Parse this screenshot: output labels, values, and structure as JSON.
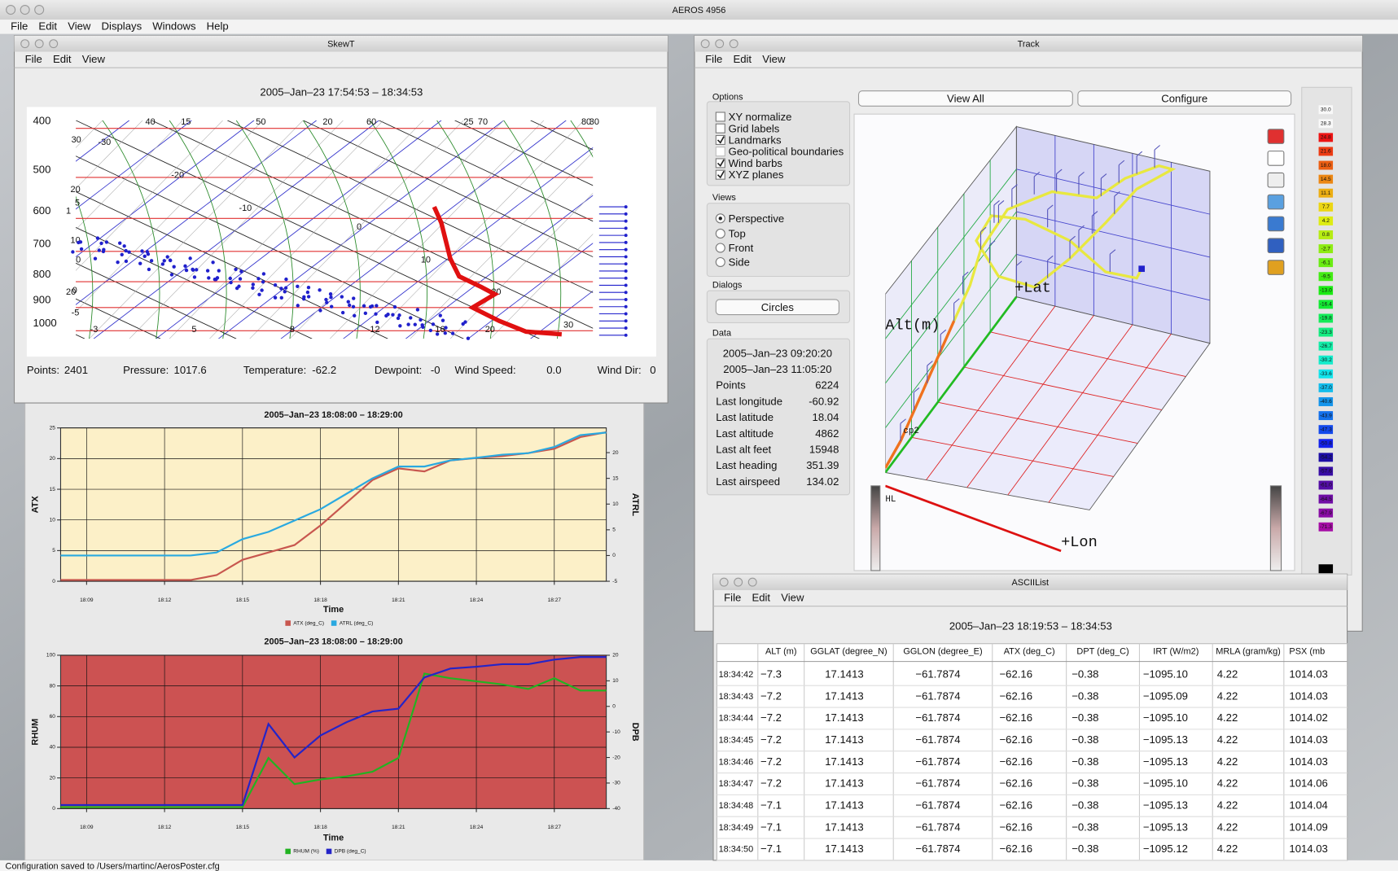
{
  "app": {
    "title": "AEROS 4956",
    "menu": [
      "File",
      "Edit",
      "View",
      "Displays",
      "Windows",
      "Help"
    ]
  },
  "skewt": {
    "title": "SkewT",
    "menu": [
      "File",
      "Edit",
      "View"
    ],
    "header": "2005–Jan–23 17:54:53 – 18:34:53",
    "pressure_labels": [
      "400",
      "500",
      "600",
      "700",
      "800",
      "900",
      "1000"
    ],
    "plot_labels": [
      "40",
      "15",
      "50",
      "20",
      "60",
      "25",
      "70",
      "80",
      "30",
      "30",
      "-30",
      "-20",
      "20",
      "5",
      "1",
      "-10",
      "0",
      "10",
      "0",
      "10",
      "20",
      "0",
      "-5",
      "20",
      "-3",
      "5",
      "8",
      "12",
      "16",
      "20",
      "30"
    ],
    "readouts": [
      {
        "label": "Points:",
        "value": "2401"
      },
      {
        "label": "Pressure:",
        "value": "1017.6"
      },
      {
        "label": "Temperature:",
        "value": "-62.2"
      },
      {
        "label": "Dewpoint:",
        "value": "-0"
      },
      {
        "label": "Wind Speed:",
        "value": "0.0"
      },
      {
        "label": "Wind Dir:",
        "value": "0"
      }
    ]
  },
  "track": {
    "title": "Track",
    "menu": [
      "File",
      "Edit",
      "View"
    ],
    "buttons": [
      "View All",
      "Configure"
    ],
    "options_title": "Options",
    "options": [
      {
        "label": "XY normalize",
        "checked": false,
        "enabled": true
      },
      {
        "label": "Grid labels",
        "checked": false,
        "enabled": true
      },
      {
        "label": "Landmarks",
        "checked": true,
        "enabled": true
      },
      {
        "label": "Geo-political boundaries",
        "checked": false,
        "enabled": false
      },
      {
        "label": "Wind barbs",
        "checked": true,
        "enabled": true
      },
      {
        "label": "XYZ planes",
        "checked": true,
        "enabled": true
      }
    ],
    "views_title": "Views",
    "views": [
      {
        "label": "Perspective",
        "selected": true
      },
      {
        "label": "Top",
        "selected": false
      },
      {
        "label": "Front",
        "selected": false
      },
      {
        "label": "Side",
        "selected": false
      }
    ],
    "dialogs_title": "Dialogs",
    "dialog_button": "Circles",
    "data_title": "Data",
    "data_times": [
      "2005–Jan–23 09:20:20",
      "2005–Jan–23 11:05:20"
    ],
    "data_rows": [
      [
        "Points",
        "6224"
      ],
      [
        "Last longitude",
        "-60.92"
      ],
      [
        "Last latitude",
        "18.04"
      ],
      [
        "Last altitude",
        "4862"
      ],
      [
        "Last alt feet",
        "15948"
      ],
      [
        "Last heading",
        "351.39"
      ],
      [
        "Last airspeed",
        "134.02"
      ]
    ],
    "view_labels": [
      "+Lat",
      "Alt(m)",
      "+Lon",
      "cp2",
      "HL"
    ],
    "color_scale": [
      "30.0",
      "28.3",
      "24.8",
      "21.6",
      "18.0",
      "14.5",
      "11.1",
      "7.7",
      "4.2",
      "0.8",
      "-2.7",
      "-6.1",
      "-9.5",
      "-13.0",
      "-16.4",
      "-19.8",
      "-23.3",
      "-26.7",
      "-30.2",
      "-33.6",
      "-37.0",
      "-40.6",
      "-43.9",
      "-47.3",
      "-50.8",
      "-54.2",
      "-57.6",
      "-61.0",
      "-64.5",
      "-67.9",
      "-71.3"
    ]
  },
  "ascii": {
    "title": "ASCIIList",
    "menu": [
      "File",
      "Edit",
      "View"
    ],
    "header": "2005–Jan–23 18:19:53 – 18:34:53",
    "columns": [
      "ALT (m)",
      "GGLAT (degree_N)",
      "GGLON (degree_E)",
      "ATX (deg_C)",
      "DPT (deg_C)",
      "IRT (W/m2)",
      "MRLA (gram/kg)",
      "PSX (mb"
    ],
    "rows": [
      [
        "18:34:42",
        "−7.3",
        "17.1413",
        "−61.7874",
        "−62.16",
        "−0.38",
        "−1095.10",
        "4.22",
        "1014.03"
      ],
      [
        "18:34:43",
        "−7.2",
        "17.1413",
        "−61.7874",
        "−62.16",
        "−0.38",
        "−1095.09",
        "4.22",
        "1014.03"
      ],
      [
        "18:34:44",
        "−7.2",
        "17.1413",
        "−61.7874",
        "−62.16",
        "−0.38",
        "−1095.10",
        "4.22",
        "1014.02"
      ],
      [
        "18:34:45",
        "−7.2",
        "17.1413",
        "−61.7874",
        "−62.16",
        "−0.38",
        "−1095.13",
        "4.22",
        "1014.03"
      ],
      [
        "18:34:46",
        "−7.2",
        "17.1413",
        "−61.7874",
        "−62.16",
        "−0.38",
        "−1095.13",
        "4.22",
        "1014.03"
      ],
      [
        "18:34:47",
        "−7.2",
        "17.1413",
        "−61.7874",
        "−62.16",
        "−0.38",
        "−1095.10",
        "4.22",
        "1014.06"
      ],
      [
        "18:34:48",
        "−7.1",
        "17.1413",
        "−61.7874",
        "−62.16",
        "−0.38",
        "−1095.13",
        "4.22",
        "1014.04"
      ],
      [
        "18:34:49",
        "−7.1",
        "17.1413",
        "−61.7874",
        "−62.16",
        "−0.38",
        "−1095.13",
        "4.22",
        "1014.09"
      ],
      [
        "18:34:50",
        "−7.1",
        "17.1413",
        "−61.7874",
        "−62.16",
        "−0.38",
        "−1095.12",
        "4.22",
        "1014.03"
      ]
    ]
  },
  "status": "Configuration saved to /Users/martinc/AerosPoster.cfg",
  "chart_data": [
    {
      "type": "line",
      "title": "2005–Jan–23 18:08:00 – 18:29:00",
      "x_label": "Time",
      "y_label": "ATX",
      "y2_label": "ATRL",
      "background": "#fcf0c8",
      "grid": true,
      "x": [
        "18:08",
        "18:09",
        "18:10",
        "18:11",
        "18:12",
        "18:13",
        "18:14",
        "18:15",
        "18:16",
        "18:17",
        "18:18",
        "18:19",
        "18:20",
        "18:21",
        "18:22",
        "18:23",
        "18:24",
        "18:25",
        "18:26",
        "18:27",
        "18:28",
        "18:29"
      ],
      "xlim": [
        "18:08",
        "18:29"
      ],
      "xticks": [
        "18:09",
        "18:12",
        "18:15",
        "18:18",
        "18:21",
        "18:24",
        "18:27"
      ],
      "ylim": [
        0,
        25
      ],
      "yticks": [
        0,
        5,
        10,
        15,
        20,
        25
      ],
      "y2lim": [
        -5,
        24.8
      ],
      "y2ticks": [
        -5,
        0,
        5,
        10,
        15,
        20
      ],
      "series": [
        {
          "name": "ATX (deg_C)",
          "color": "#c8574f",
          "values": [
            0.2,
            0.2,
            0.2,
            0.2,
            0.2,
            0.2,
            1.0,
            3.5,
            4.7,
            5.9,
            9.1,
            12.8,
            16.5,
            18.4,
            17.9,
            19.7,
            20.1,
            20.4,
            20.9,
            21.6,
            23.5,
            24.3
          ]
        },
        {
          "name": "ATRL (deg_C)",
          "color": "#2aa9e0",
          "axis": "y2",
          "values": [
            0.0,
            0.0,
            0.0,
            0.0,
            0.0,
            0.0,
            0.6,
            3.2,
            4.6,
            6.8,
            9.0,
            12.0,
            15.0,
            17.3,
            17.3,
            18.5,
            19.0,
            19.6,
            19.9,
            21.1,
            23.4,
            23.9
          ]
        }
      ]
    },
    {
      "type": "line",
      "title": "2005–Jan–23 18:08:00 – 18:29:00",
      "x_label": "Time",
      "y_label": "RHUM",
      "y2_label": "DPB",
      "background": "#cc5252",
      "grid": true,
      "x": [
        "18:08",
        "18:09",
        "18:10",
        "18:11",
        "18:12",
        "18:13",
        "18:14",
        "18:15",
        "18:16",
        "18:17",
        "18:18",
        "18:19",
        "18:20",
        "18:21",
        "18:22",
        "18:23",
        "18:24",
        "18:25",
        "18:26",
        "18:27",
        "18:28",
        "18:29"
      ],
      "xlim": [
        "18:08",
        "18:29"
      ],
      "xticks": [
        "18:09",
        "18:12",
        "18:15",
        "18:18",
        "18:21",
        "18:24",
        "18:27"
      ],
      "ylim": [
        0,
        100
      ],
      "yticks": [
        0,
        20,
        40,
        60,
        80,
        100
      ],
      "y2lim": [
        -40,
        20
      ],
      "y2ticks": [
        -40,
        -30,
        -20,
        -10,
        0,
        10,
        20
      ],
      "series": [
        {
          "name": "RHUM (%)",
          "color": "#22b322",
          "values": [
            1,
            1,
            1,
            1,
            1,
            1,
            1,
            1,
            33,
            16,
            19,
            21,
            24,
            33,
            88,
            85,
            83,
            81,
            78,
            85,
            77,
            77
          ]
        },
        {
          "name": "DPB (deg_C)",
          "color": "#2424c8",
          "axis": "y2",
          "values": [
            -38.6,
            -38.6,
            -38.6,
            -38.6,
            -38.6,
            -38.6,
            -38.6,
            -38.6,
            -6.9,
            -20,
            -11.4,
            -6.2,
            -2,
            -0.9,
            11.3,
            14.8,
            15.5,
            16.5,
            16.5,
            18.3,
            19.3,
            19.3
          ]
        }
      ]
    }
  ]
}
